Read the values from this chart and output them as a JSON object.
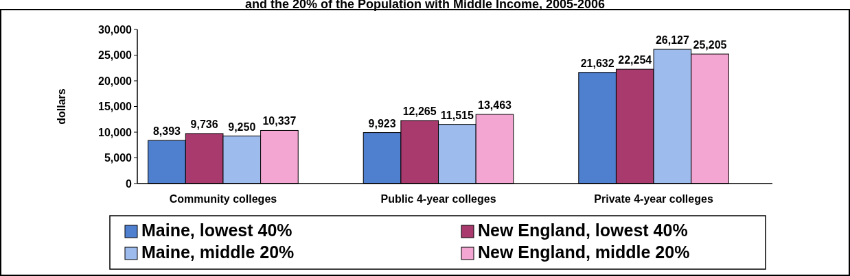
{
  "chart_data": {
    "type": "bar",
    "title": "and the 20% of the Population with Middle Income, 2005-2006",
    "ylabel": "dollars",
    "categories": [
      "Community colleges",
      "Public 4-year colleges",
      "Private 4-year colleges"
    ],
    "series": [
      {
        "name": "Maine, lowest 40%",
        "color": "#4f7fcf",
        "values": [
          8393,
          9923,
          21632
        ],
        "value_labels": [
          "8,393",
          "9,923",
          "21,632"
        ]
      },
      {
        "name": "New England, lowest 40%",
        "color": "#a83a6e",
        "values": [
          9736,
          12265,
          22254
        ],
        "value_labels": [
          "9,736",
          "12,265",
          "22,254"
        ]
      },
      {
        "name": "Maine, middle 20%",
        "color": "#9dbbec",
        "values": [
          9250,
          11515,
          26127
        ],
        "value_labels": [
          "9,250",
          "11,515",
          "26,127"
        ]
      },
      {
        "name": "New England, middle 20%",
        "color": "#f4a6d2",
        "values": [
          10337,
          13463,
          25205
        ],
        "value_labels": [
          "10,337",
          "13,463",
          "25,205"
        ]
      }
    ],
    "ylim": [
      0,
      30000
    ],
    "yticks": [
      {
        "value": 0,
        "label": "0"
      },
      {
        "value": 5000,
        "label": "5,000"
      },
      {
        "value": 10000,
        "label": "10,000"
      },
      {
        "value": 15000,
        "label": "15,000"
      },
      {
        "value": 20000,
        "label": "20,000"
      },
      {
        "value": 25000,
        "label": "25,000"
      },
      {
        "value": 30000,
        "label": "30,000"
      }
    ],
    "legend": "bottom",
    "grid": false
  }
}
